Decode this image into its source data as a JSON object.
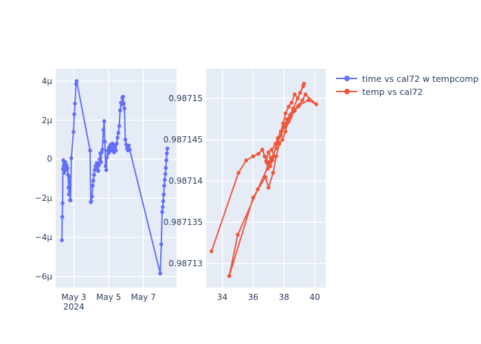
{
  "figure": {
    "background": "#ffffff",
    "plot_bgcolor": "#e5ecf6",
    "grid_color": "#ffffff",
    "font_color": "#2a3f5f",
    "legend": {
      "items": [
        {
          "label": "time vs cal72 w tempcomp",
          "color": "#636efa"
        },
        {
          "label": "temp vs cal72",
          "color": "#ef553b"
        }
      ]
    }
  },
  "chart_data": [
    {
      "type": "line",
      "name": "time vs cal72 w tempcomp",
      "color": "#636efa",
      "marker": "circle",
      "grid": true,
      "legend_position": "top-right-outside",
      "xlabel": "",
      "ylabel": "",
      "x_axis_kind": "date",
      "x_range": [
        1.95,
        8.91
      ],
      "y_range": [
        -6.57,
        4.63
      ],
      "y_unit": "micro (1e-6)",
      "x_ticks": [
        {
          "v": 3,
          "label": "May 3",
          "sub": "2024"
        },
        {
          "v": 5,
          "label": "May 5",
          "sub": ""
        },
        {
          "v": 7,
          "label": "May 7",
          "sub": ""
        }
      ],
      "y_ticks": [
        {
          "v": 4,
          "label": "4μ"
        },
        {
          "v": 2,
          "label": "2μ"
        },
        {
          "v": 0,
          "label": "0"
        },
        {
          "v": -2,
          "label": "−2μ"
        },
        {
          "v": -4,
          "label": "−4μ"
        },
        {
          "v": -6,
          "label": "−6μ"
        }
      ],
      "points": [
        [
          2.31,
          -4.15
        ],
        [
          2.33,
          -2.95
        ],
        [
          2.35,
          -2.25
        ],
        [
          2.37,
          -0.5
        ],
        [
          2.39,
          -0.05
        ],
        [
          2.41,
          -0.35
        ],
        [
          2.43,
          -0.7
        ],
        [
          2.46,
          -0.3
        ],
        [
          2.48,
          -0.55
        ],
        [
          2.51,
          -0.15
        ],
        [
          2.54,
          -0.4
        ],
        [
          2.57,
          -0.3
        ],
        [
          2.6,
          -0.55
        ],
        [
          2.63,
          -0.45
        ],
        [
          2.66,
          -0.8
        ],
        [
          2.69,
          -1.45
        ],
        [
          2.71,
          -1.8
        ],
        [
          2.74,
          -0.9
        ],
        [
          2.78,
          -2.1
        ],
        [
          2.81,
          -2.1
        ],
        [
          2.85,
          0.05
        ],
        [
          2.98,
          1.4
        ],
        [
          3.02,
          2.3
        ],
        [
          3.06,
          2.85
        ],
        [
          3.12,
          3.85
        ],
        [
          3.16,
          4.0
        ],
        [
          3.93,
          0.45
        ],
        [
          3.97,
          -2.2
        ],
        [
          4.0,
          -2.15
        ],
        [
          4.04,
          -1.9
        ],
        [
          4.08,
          -1.35
        ],
        [
          4.12,
          -1.1
        ],
        [
          4.16,
          -0.8
        ],
        [
          4.2,
          -0.55
        ],
        [
          4.24,
          -0.35
        ],
        [
          4.28,
          -0.5
        ],
        [
          4.32,
          -0.2
        ],
        [
          4.36,
          -0.35
        ],
        [
          4.4,
          -0.6
        ],
        [
          4.44,
          -0.3
        ],
        [
          4.48,
          0.0
        ],
        [
          4.52,
          0.3
        ],
        [
          4.56,
          -0.15
        ],
        [
          4.6,
          0.35
        ],
        [
          4.64,
          0.5
        ],
        [
          4.7,
          1.5
        ],
        [
          4.74,
          1.95
        ],
        [
          4.78,
          0.9
        ],
        [
          4.82,
          -0.35
        ],
        [
          4.86,
          -0.55
        ],
        [
          4.9,
          0.1
        ],
        [
          4.94,
          0.45
        ],
        [
          4.98,
          0.3
        ],
        [
          5.02,
          0.6
        ],
        [
          5.06,
          0.4
        ],
        [
          5.1,
          0.75
        ],
        [
          5.14,
          0.55
        ],
        [
          5.18,
          0.45
        ],
        [
          5.22,
          0.8
        ],
        [
          5.26,
          0.55
        ],
        [
          5.31,
          0.35
        ],
        [
          5.36,
          0.7
        ],
        [
          5.41,
          0.45
        ],
        [
          5.46,
          0.8
        ],
        [
          5.51,
          1.1
        ],
        [
          5.56,
          1.35
        ],
        [
          5.61,
          1.7
        ],
        [
          5.66,
          2.5
        ],
        [
          5.71,
          2.9
        ],
        [
          5.75,
          2.8
        ],
        [
          5.79,
          3.15
        ],
        [
          5.83,
          3.2
        ],
        [
          5.87,
          2.85
        ],
        [
          5.91,
          2.6
        ],
        [
          5.96,
          1.0
        ],
        [
          6.01,
          0.75
        ],
        [
          6.06,
          0.55
        ],
        [
          6.11,
          0.45
        ],
        [
          6.16,
          0.7
        ],
        [
          6.21,
          0.5
        ],
        [
          7.97,
          -5.85
        ],
        [
          8.03,
          -4.35
        ],
        [
          8.08,
          -2.7
        ],
        [
          8.11,
          -2.45
        ],
        [
          8.14,
          -2.15
        ],
        [
          8.17,
          -1.8
        ],
        [
          8.2,
          -1.35
        ],
        [
          8.23,
          -1.05
        ],
        [
          8.26,
          -0.75
        ],
        [
          8.29,
          -0.45
        ],
        [
          8.32,
          -0.05
        ],
        [
          8.35,
          0.3
        ],
        [
          8.38,
          0.55
        ]
      ]
    },
    {
      "type": "line",
      "name": "temp vs cal72",
      "color": "#ef553b",
      "marker": "circle",
      "grid": true,
      "xlabel": "",
      "ylabel": "",
      "x_axis_kind": "linear",
      "x_range": [
        32.95,
        40.71
      ],
      "y_range": [
        0.9871271,
        0.9871536
      ],
      "x_ticks": [
        {
          "v": 34,
          "label": "34",
          "sub": ""
        },
        {
          "v": 36,
          "label": "36",
          "sub": ""
        },
        {
          "v": 38,
          "label": "38",
          "sub": ""
        },
        {
          "v": 40,
          "label": "40",
          "sub": ""
        }
      ],
      "y_ticks": [
        {
          "v": 0.98715,
          "label": "0.98715"
        },
        {
          "v": 0.987145,
          "label": "0.987145"
        },
        {
          "v": 0.98714,
          "label": "0.98714"
        },
        {
          "v": 0.987135,
          "label": "0.987135"
        },
        {
          "v": 0.98713,
          "label": "0.98713"
        }
      ],
      "points": [
        [
          33.3,
          0.9871315
        ],
        [
          35.05,
          0.987141
        ],
        [
          35.55,
          0.9871425
        ],
        [
          36.0,
          0.987143
        ],
        [
          36.35,
          0.9871433
        ],
        [
          36.6,
          0.9871438
        ],
        [
          36.75,
          0.987143
        ],
        [
          36.9,
          0.9871422
        ],
        [
          36.95,
          0.9871415
        ],
        [
          37.05,
          0.9871423
        ],
        [
          37.15,
          0.9871428
        ],
        [
          37.0,
          0.9871435
        ],
        [
          36.85,
          0.9871424
        ],
        [
          37.1,
          0.9871418
        ],
        [
          37.25,
          0.9871425
        ],
        [
          37.35,
          0.987143
        ],
        [
          37.2,
          0.9871438
        ],
        [
          37.45,
          0.9871445
        ],
        [
          37.6,
          0.9871452
        ],
        [
          37.8,
          0.987146
        ],
        [
          37.95,
          0.987147
        ],
        [
          38.1,
          0.9871482
        ],
        [
          38.3,
          0.987149
        ],
        [
          38.5,
          0.9871495
        ],
        [
          38.7,
          0.9871505
        ],
        [
          38.9,
          0.98715
        ],
        [
          39.05,
          0.9871507
        ],
        [
          39.3,
          0.9871518
        ],
        [
          39.25,
          0.9871515
        ],
        [
          38.6,
          0.9871488
        ],
        [
          38.4,
          0.987148
        ],
        [
          38.2,
          0.9871475
        ],
        [
          38.0,
          0.9871465
        ],
        [
          37.8,
          0.9871455
        ],
        [
          37.6,
          0.9871448
        ],
        [
          37.5,
          0.987144
        ],
        [
          36.3,
          0.987139
        ],
        [
          35.0,
          0.9871335
        ],
        [
          34.45,
          0.9871285
        ],
        [
          36.0,
          0.987138
        ],
        [
          36.8,
          0.9871405
        ],
        [
          37.0,
          0.9871392
        ],
        [
          37.3,
          0.987141
        ],
        [
          37.5,
          0.987143
        ],
        [
          37.7,
          0.9871445
        ],
        [
          37.9,
          0.987145
        ],
        [
          38.1,
          0.987146
        ],
        [
          38.2,
          0.987147
        ],
        [
          38.35,
          0.9871475
        ],
        [
          38.6,
          0.9871485
        ],
        [
          39.0,
          0.9871492
        ],
        [
          39.6,
          0.9871498
        ],
        [
          40.1,
          0.9871493
        ],
        [
          39.4,
          0.9871505
        ],
        [
          39.2,
          0.9871498
        ],
        [
          38.9,
          0.987149
        ],
        [
          38.7,
          0.9871485
        ],
        [
          38.45,
          0.9871478
        ],
        [
          38.3,
          0.9871472
        ],
        [
          38.15,
          0.9871468
        ]
      ]
    }
  ]
}
